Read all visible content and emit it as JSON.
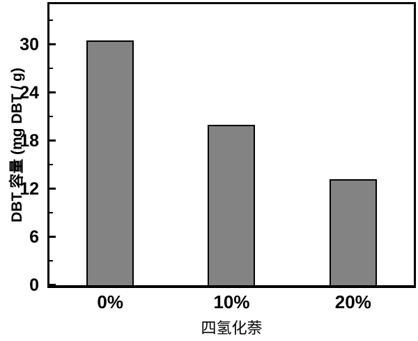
{
  "chart_data": {
    "type": "bar",
    "title": "",
    "categories": [
      "0%",
      "10%",
      "20%"
    ],
    "values": [
      30.5,
      20,
      13.2
    ],
    "xlabel": "四氢化萘",
    "ylabel": "DBT 容量 (mg DBT / g)",
    "ylim": [
      0,
      35
    ],
    "yticks": [
      0,
      6,
      12,
      18,
      24,
      30
    ],
    "yticks_minor": [
      3,
      9,
      15,
      21,
      27,
      33
    ],
    "grid": false,
    "legend": null,
    "bar_color": "#838383",
    "bar_border_color": "#000000",
    "axis_color": "#000000",
    "background_color": "#ffffff"
  }
}
